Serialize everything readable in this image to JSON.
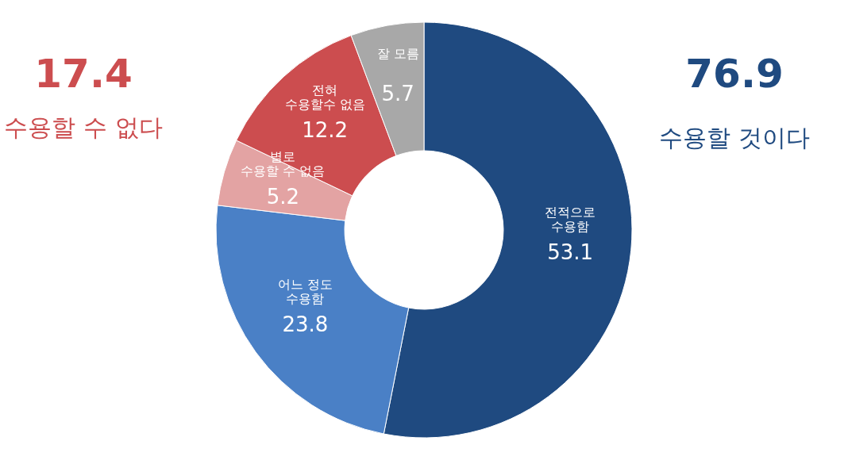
{
  "chart_data": {
    "type": "donut",
    "categories": [
      "전적으로\n수용함",
      "어느 정도\n수용함",
      "별로\n수용할 수 없음",
      "전혀\n수용할수 없음",
      "잘 모름"
    ],
    "values": [
      53.1,
      23.8,
      5.2,
      12.2,
      5.7
    ],
    "colors": [
      "#1f4a80",
      "#4a80c6",
      "#e3a3a3",
      "#cc4d4f",
      "#a8a8a8"
    ],
    "data_labels": true,
    "annotations": [
      "17.4",
      "수용할 수 없다",
      "76.9",
      "수용할 것이다"
    ]
  }
}
